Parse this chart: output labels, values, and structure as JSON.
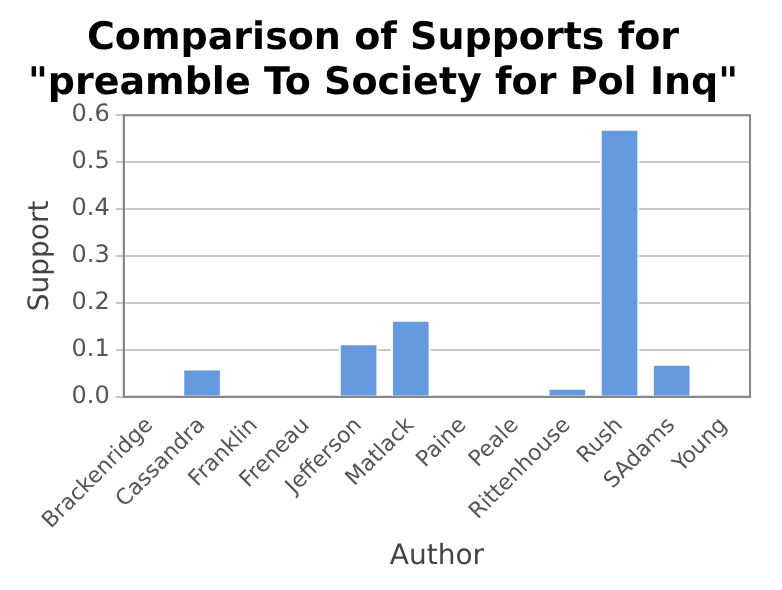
{
  "chart_data": {
    "type": "bar",
    "title": [
      "Comparison of Supports for",
      "\"preamble To Society for Pol Inq\""
    ],
    "categories": [
      "Brackenridge",
      "Cassandra",
      "Franklin",
      "Freneau",
      "Jefferson",
      "Matlack",
      "Paine",
      "Peale",
      "Rittenhouse",
      "Rush",
      "SAdams",
      "Young"
    ],
    "values": [
      0,
      0.06,
      0,
      0,
      0.114,
      0.164,
      0,
      0,
      0.019,
      0.571,
      0.07,
      0
    ],
    "color": "#6699dd",
    "xlabel": "Author",
    "ylabel": "Support",
    "ylim": [
      0,
      0.6
    ],
    "yticks": [
      {
        "value": 0,
        "label": "0.0"
      },
      {
        "value": 0.1,
        "label": "0.1"
      },
      {
        "value": 0.2,
        "label": "0.2"
      },
      {
        "value": 0.3,
        "label": "0.3"
      },
      {
        "value": 0.4,
        "label": "0.4"
      },
      {
        "value": 0.5,
        "label": "0.5"
      },
      {
        "value": 0.6,
        "label": "0.6"
      }
    ],
    "grid": "y",
    "legend": false
  }
}
